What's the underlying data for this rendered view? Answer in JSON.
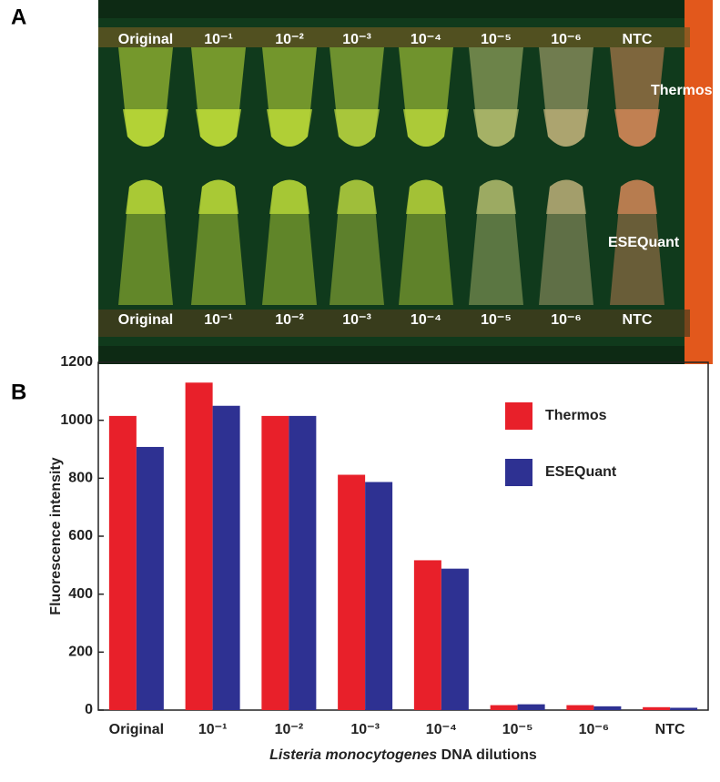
{
  "panels": [
    "A",
    "B"
  ],
  "photo": {
    "top_labels": [
      "Original",
      "10⁻¹",
      "10⁻²",
      "10⁻³",
      "10⁻⁴",
      "10⁻⁵",
      "10⁻⁶",
      "NTC"
    ],
    "bottom_labels": [
      "Original",
      "10⁻¹",
      "10⁻²",
      "10⁻³",
      "10⁻⁴",
      "10⁻⁵",
      "10⁻⁶",
      "NTC"
    ],
    "row_labels": [
      "Thermos",
      "ESEQuant"
    ]
  },
  "chart_data": {
    "type": "bar",
    "categories": [
      "Original",
      "10⁻¹",
      "10⁻²",
      "10⁻³",
      "10⁻⁴",
      "10⁻⁵",
      "10⁻⁶",
      "NTC"
    ],
    "series": [
      {
        "name": "Thermos",
        "color": "#e8202a",
        "values": [
          1015,
          1130,
          1015,
          812,
          517,
          17,
          17,
          10
        ]
      },
      {
        "name": "ESEQuant",
        "color": "#2e3192",
        "values": [
          908,
          1050,
          1015,
          787,
          488,
          20,
          13,
          8
        ]
      }
    ],
    "ylabel": "Fluorescence intensity",
    "xlabel": [
      "Listeria monocytogenes",
      "DNA dilutions"
    ],
    "ylim": [
      0,
      1200
    ],
    "yticks": [
      0,
      200,
      400,
      600,
      800,
      1000,
      1200
    ],
    "legend": "upper right"
  }
}
